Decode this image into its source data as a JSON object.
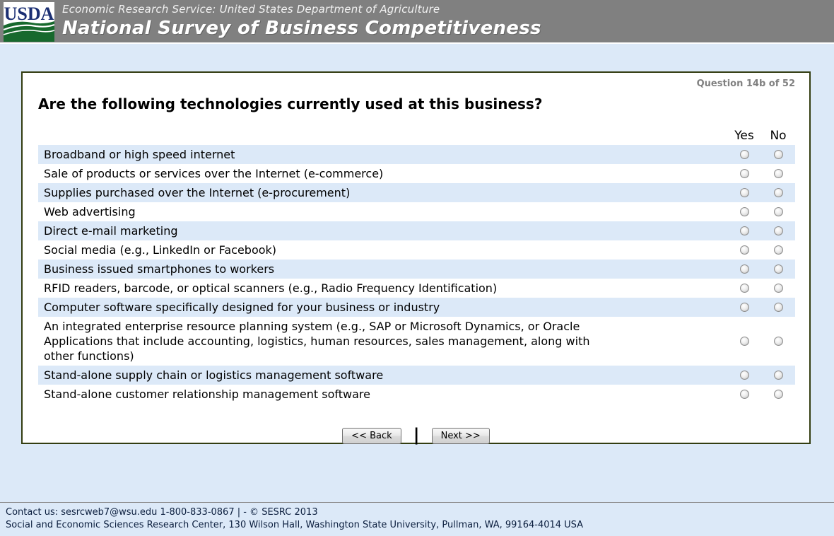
{
  "header": {
    "logo_text": "USDA",
    "agency_line": "Economic Research Service: United States Department of Agriculture",
    "survey_title": "National Survey of Business Competitiveness"
  },
  "question": {
    "progress": "Question 14b of 52",
    "title": "Are the following technologies currently used at this business?",
    "columns": {
      "yes": "Yes",
      "no": "No"
    },
    "items": [
      "Broadband or high speed internet",
      "Sale of products or services over the Internet (e-commerce)",
      "Supplies purchased over the Internet (e-procurement)",
      "Web advertising",
      "Direct e-mail marketing",
      "Social media (e.g., LinkedIn or Facebook)",
      "Business issued smartphones to workers",
      "RFID readers, barcode, or optical scanners (e.g., Radio Frequency Identification)",
      "Computer software specifically designed for your business or industry",
      "An integrated enterprise resource planning system (e.g., SAP or Microsoft Dynamics, or Oracle Applications that include accounting, logistics, human resources, sales management, along with other functions)",
      "Stand-alone supply chain or logistics management software",
      "Stand-alone customer relationship management software"
    ],
    "selection_state": "none-selected"
  },
  "buttons": {
    "back": "<< Back",
    "divider": "|",
    "next": "Next >>"
  },
  "footer": {
    "line1": "Contact us: sesrcweb7@wsu.edu 1-800-833-0867 | - © SESRC 2013",
    "line2": "Social and Economic Sciences Research Center, 130 Wilson Hall, Washington State University, Pullman, WA, 99164-4014 USA"
  },
  "colors": {
    "header_bg": "#808080",
    "page_bg": "#dce9f8",
    "row_alt": "#dce9f8",
    "box_border": "#333d11",
    "footer_text": "#0b1e3e",
    "logo_blue": "#1b2f73",
    "logo_green": "#17692d"
  }
}
